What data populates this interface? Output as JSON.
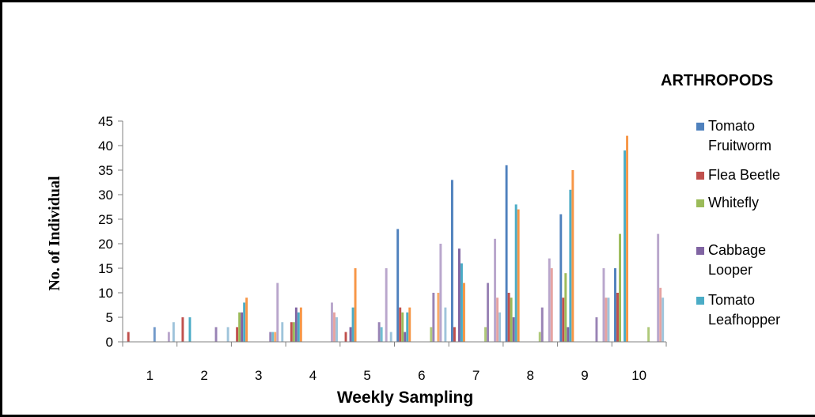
{
  "chart_data": {
    "type": "bar",
    "xlabel": "Weekly  Sampling",
    "ylabel": "No. of Individual",
    "ylim": [
      0,
      45
    ],
    "yticks": [
      0,
      5,
      10,
      15,
      20,
      25,
      30,
      35,
      40,
      45
    ],
    "grid": false,
    "legend_title": "ARTHROPODS",
    "legend_position": "right",
    "categories": [
      "1",
      "2",
      "3",
      "4",
      "5",
      "6",
      "7",
      "8",
      "9",
      "10"
    ],
    "series": [
      {
        "name": "Tomato Fruitworm",
        "color": "#4F81BD",
        "values": [
          0,
          0,
          0,
          0,
          0,
          23,
          33,
          36,
          26,
          15
        ]
      },
      {
        "name": "Flea Beetle",
        "color": "#C0504D",
        "values": [
          2,
          5,
          3,
          4,
          2,
          7,
          3,
          10,
          9,
          10
        ]
      },
      {
        "name": "Whitefly",
        "color": "#9BBB59",
        "values": [
          0,
          0,
          6,
          4,
          0,
          6,
          0,
          9,
          14,
          22
        ]
      },
      {
        "name": "Cabbage Looper",
        "color": "#8064A2",
        "values": [
          0,
          0,
          6,
          7,
          3,
          2,
          19,
          5,
          3,
          0
        ]
      },
      {
        "name": "Tomato Leafhopper",
        "color": "#4BACC6",
        "values": [
          0,
          5,
          8,
          6,
          7,
          6,
          16,
          28,
          31,
          39
        ]
      },
      {
        "color": "#F79646",
        "values": [
          0,
          0,
          9,
          7,
          15,
          7,
          12,
          27,
          35,
          42
        ]
      },
      {
        "color": "#2C4D75",
        "values": [
          0,
          0,
          0,
          0,
          0,
          0,
          0,
          0,
          0,
          0
        ]
      },
      {
        "color": "#772C2A",
        "values": [
          0,
          0,
          0,
          0,
          0,
          0,
          0,
          0,
          0,
          0
        ]
      },
      {
        "color": "#5F7530",
        "values": [
          0,
          0,
          0,
          0,
          0,
          0,
          0,
          0,
          0,
          0
        ]
      },
      {
        "color": "#4D3B62",
        "values": [
          0,
          0,
          0,
          0,
          0,
          0,
          0,
          0,
          0,
          0
        ]
      },
      {
        "color": "#276A7C",
        "values": [
          0,
          0,
          0,
          0,
          0,
          0,
          0,
          0,
          0,
          0
        ]
      },
      {
        "color": "#B65708",
        "values": [
          0,
          0,
          0,
          0,
          0,
          0,
          0,
          0,
          0,
          0
        ]
      },
      {
        "color": "#729ACA",
        "values": [
          3,
          0,
          0,
          0,
          0,
          0,
          0,
          0,
          0,
          0
        ]
      },
      {
        "color": "#CD7371",
        "values": [
          0,
          0,
          0,
          0,
          0,
          0,
          0,
          0,
          0,
          0
        ]
      },
      {
        "color": "#AFC97A",
        "values": [
          0,
          0,
          0,
          0,
          0,
          3,
          3,
          2,
          0,
          3
        ]
      },
      {
        "color": "#9983B5",
        "values": [
          0,
          3,
          2,
          0,
          4,
          10,
          12,
          7,
          5,
          0
        ]
      },
      {
        "color": "#6FBDD1",
        "values": [
          0,
          0,
          2,
          0,
          3,
          0,
          0,
          0,
          0,
          0
        ]
      },
      {
        "color": "#F9AB6B",
        "values": [
          0,
          0,
          2,
          0,
          0,
          10,
          0,
          0,
          0,
          0
        ]
      },
      {
        "color": "#B9A6CC",
        "values": [
          2,
          0,
          12,
          8,
          15,
          20,
          21,
          17,
          15,
          22
        ]
      },
      {
        "color": "#E6A3A2",
        "values": [
          0,
          0,
          0,
          6,
          0,
          0,
          9,
          15,
          9,
          11
        ]
      },
      {
        "color": "#9FC4DB",
        "values": [
          4,
          3,
          4,
          5,
          2,
          7,
          6,
          0,
          9,
          9
        ]
      }
    ]
  }
}
